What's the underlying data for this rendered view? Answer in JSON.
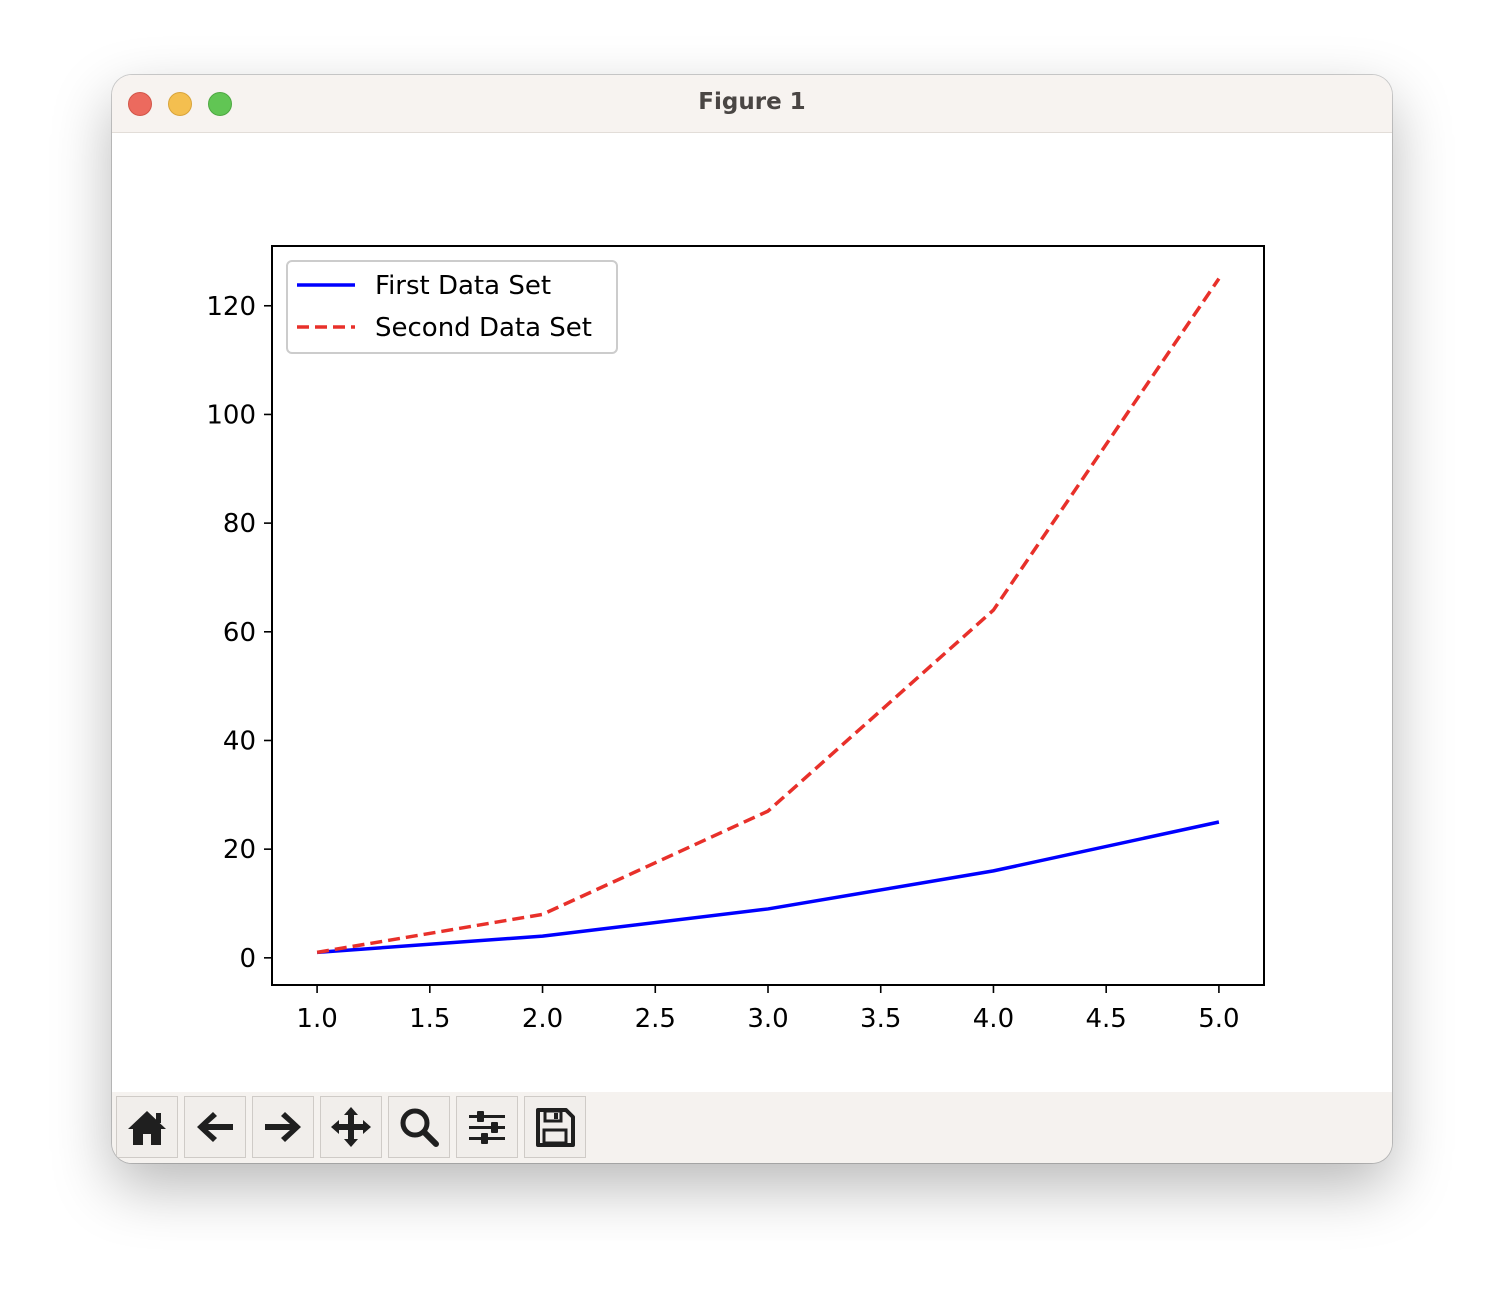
{
  "window": {
    "title": "Figure 1"
  },
  "toolbar": {
    "buttons": [
      {
        "icon": "home-icon"
      },
      {
        "icon": "back-arrow-icon"
      },
      {
        "icon": "forward-arrow-icon"
      },
      {
        "icon": "pan-move-icon"
      },
      {
        "icon": "zoom-magnifier-icon"
      },
      {
        "icon": "configure-subplots-icon"
      },
      {
        "icon": "save-floppy-icon"
      }
    ]
  },
  "chart_data": {
    "type": "line",
    "title": "",
    "xlabel": "",
    "ylabel": "",
    "x": [
      1.0,
      2.0,
      3.0,
      4.0,
      5.0
    ],
    "xlim": [
      0.8,
      5.2
    ],
    "ylim": [
      -5,
      131
    ],
    "xticks": [
      "1.0",
      "1.5",
      "2.0",
      "2.5",
      "3.0",
      "3.5",
      "4.0",
      "4.5",
      "5.0"
    ],
    "yticks": [
      "0",
      "20",
      "40",
      "60",
      "80",
      "100",
      "120"
    ],
    "grid": false,
    "legend_position": "upper-left",
    "series": [
      {
        "name": "First Data Set",
        "values": [
          1,
          4,
          9,
          16,
          25
        ],
        "color": "#0000ff",
        "style": "solid"
      },
      {
        "name": "Second Data Set",
        "values": [
          1,
          8,
          27,
          64,
          125
        ],
        "color": "#e8302a",
        "style": "dashed"
      }
    ]
  }
}
